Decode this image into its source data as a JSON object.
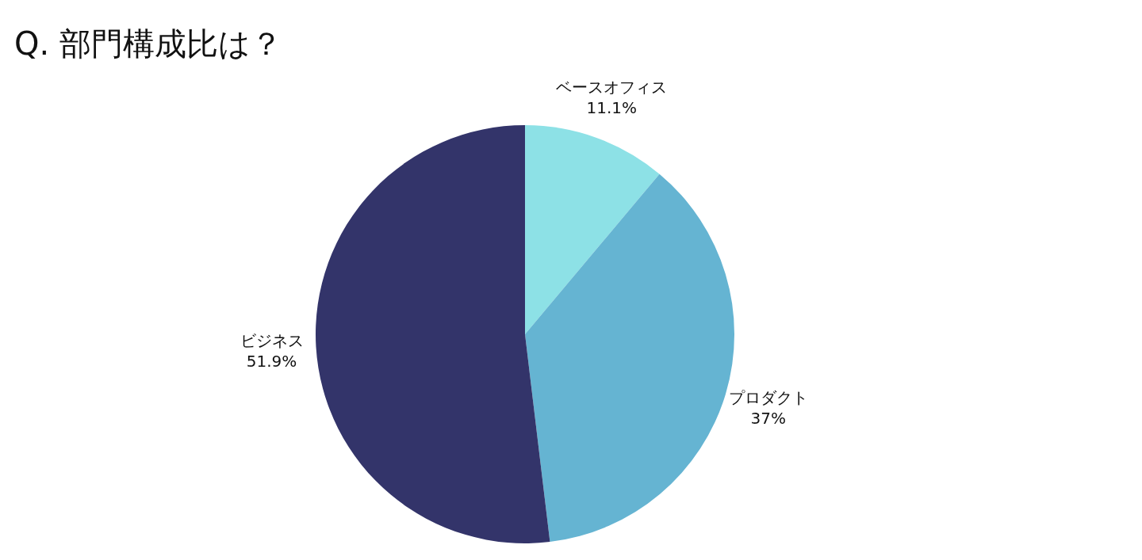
{
  "chart_data": {
    "type": "pie",
    "title": "Q. 部門構成比は？",
    "categories": [
      "ベースオフィス",
      "プロダクト",
      "ビジネス"
    ],
    "values": [
      11.1,
      37,
      51.9
    ],
    "colors": [
      "#8de1e6",
      "#65b4d2",
      "#33346a"
    ],
    "value_labels": [
      "11.1%",
      "37%",
      "51.9%"
    ],
    "legend": false
  }
}
